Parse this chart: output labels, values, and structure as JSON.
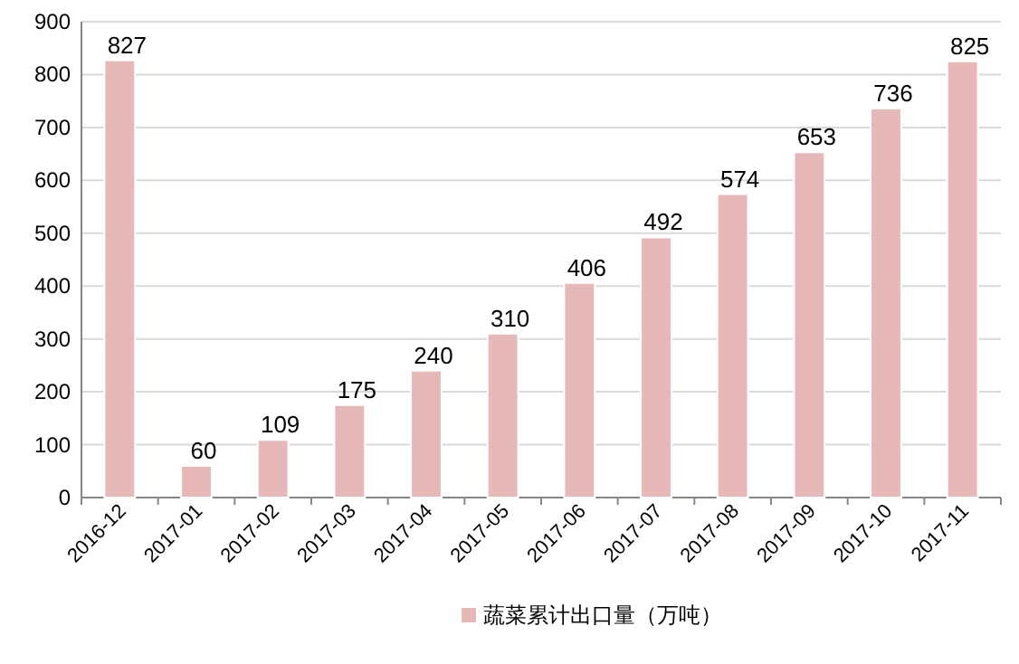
{
  "chart_data": {
    "type": "bar",
    "categories": [
      "2016-12",
      "2017-01",
      "2017-02",
      "2017-03",
      "2017-04",
      "2017-05",
      "2017-06",
      "2017-07",
      "2017-08",
      "2017-09",
      "2017-10",
      "2017-11"
    ],
    "series": [
      {
        "name": "蔬菜累计出口量（万吨）",
        "color": "#e6b8b7",
        "values": [
          827,
          60,
          109,
          175,
          240,
          310,
          406,
          492,
          574,
          653,
          736,
          825
        ]
      }
    ],
    "ylim": [
      0,
      900
    ],
    "yticks": [
      0,
      100,
      200,
      300,
      400,
      500,
      600,
      700,
      800,
      900
    ],
    "grid": "y",
    "legend": "bottom",
    "data_labels": true
  }
}
